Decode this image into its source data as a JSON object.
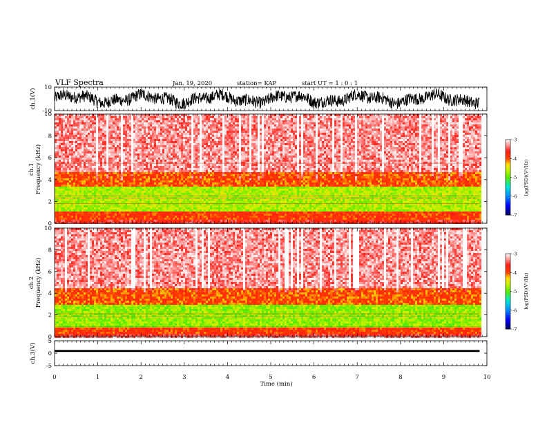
{
  "header": {
    "title": "VLF Spectra",
    "date": "Jan. 19, 2020",
    "station": "station= KAP",
    "start": "start  UT =   1 : 0  : 1"
  },
  "chart_data": [
    {
      "type": "line",
      "name": "ch1-waveform",
      "ylabel": "ch.1(V)",
      "ylim": [
        -10,
        10
      ],
      "yticks": [
        "10",
        "-10"
      ],
      "xlim": [
        0,
        10
      ],
      "x_extent": [
        0,
        9.83
      ],
      "envelope_amplitude_v": 10
    },
    {
      "type": "heatmap",
      "name": "ch1-spectrogram",
      "ylabel": "ch.1",
      "ylabel2": "Frequency  (kHz)",
      "ylim": [
        0,
        10
      ],
      "yticks": [
        "0",
        "2",
        "4",
        "6",
        "8",
        "10"
      ],
      "xlim": [
        0,
        10
      ],
      "x_extent": [
        0,
        9.83
      ],
      "bands_khz": [
        {
          "from": 0,
          "to": 0.3,
          "log_psd": -3.6
        },
        {
          "from": 0.3,
          "to": 1.0,
          "log_psd": -3.9
        },
        {
          "from": 1.0,
          "to": 3.3,
          "log_psd": -4.7
        },
        {
          "from": 3.3,
          "to": 4.6,
          "log_psd": -4.0
        },
        {
          "from": 4.6,
          "to": 10,
          "log_psd": -3.3
        }
      ],
      "lines_khz": [
        1.0,
        1.8,
        2.3,
        2.5,
        5.5
      ],
      "colorbar": {
        "min": -7,
        "max": -3,
        "ticks": [
          "-3",
          "-4",
          "-5",
          "-6",
          "-7"
        ],
        "label": "log(PSD)(V²/Hz)"
      }
    },
    {
      "type": "heatmap",
      "name": "ch2-spectrogram",
      "ylabel": "ch.2",
      "ylabel2": "Frequency  (kHz)",
      "ylim": [
        0,
        10
      ],
      "yticks": [
        "0",
        "2",
        "4",
        "6",
        "8",
        "10"
      ],
      "xlim": [
        0,
        10
      ],
      "x_extent": [
        0,
        9.83
      ],
      "bands_khz": [
        {
          "from": 0,
          "to": 0.3,
          "log_psd": -3.6
        },
        {
          "from": 0.3,
          "to": 0.9,
          "log_psd": -3.9
        },
        {
          "from": 0.9,
          "to": 3.0,
          "log_psd": -4.8
        },
        {
          "from": 3.0,
          "to": 4.4,
          "log_psd": -4.0
        },
        {
          "from": 4.4,
          "to": 10,
          "log_psd": -3.3
        }
      ],
      "lines_khz": [
        0.9,
        1.8,
        2.1
      ],
      "colorbar": {
        "min": -7,
        "max": -3,
        "ticks": [
          "-3",
          "-4",
          "-5",
          "-6",
          "-7"
        ],
        "label": "log(PSD)(V²/Hz)"
      }
    },
    {
      "type": "line",
      "name": "ch3-waveform",
      "ylabel": "ch.3(V)",
      "ylim": [
        -5,
        5
      ],
      "yticks": [
        "5",
        "0",
        "-5"
      ],
      "xlim": [
        0,
        10
      ],
      "x_extent": [
        0,
        9.83
      ],
      "level_v": 0.9,
      "envelope_amplitude_v": 0.4
    }
  ],
  "xaxis": {
    "label": "Time  (min)",
    "ticks": [
      "0",
      "1",
      "2",
      "3",
      "4",
      "5",
      "6",
      "7",
      "8",
      "9",
      "10"
    ],
    "range": [
      0,
      10
    ]
  }
}
